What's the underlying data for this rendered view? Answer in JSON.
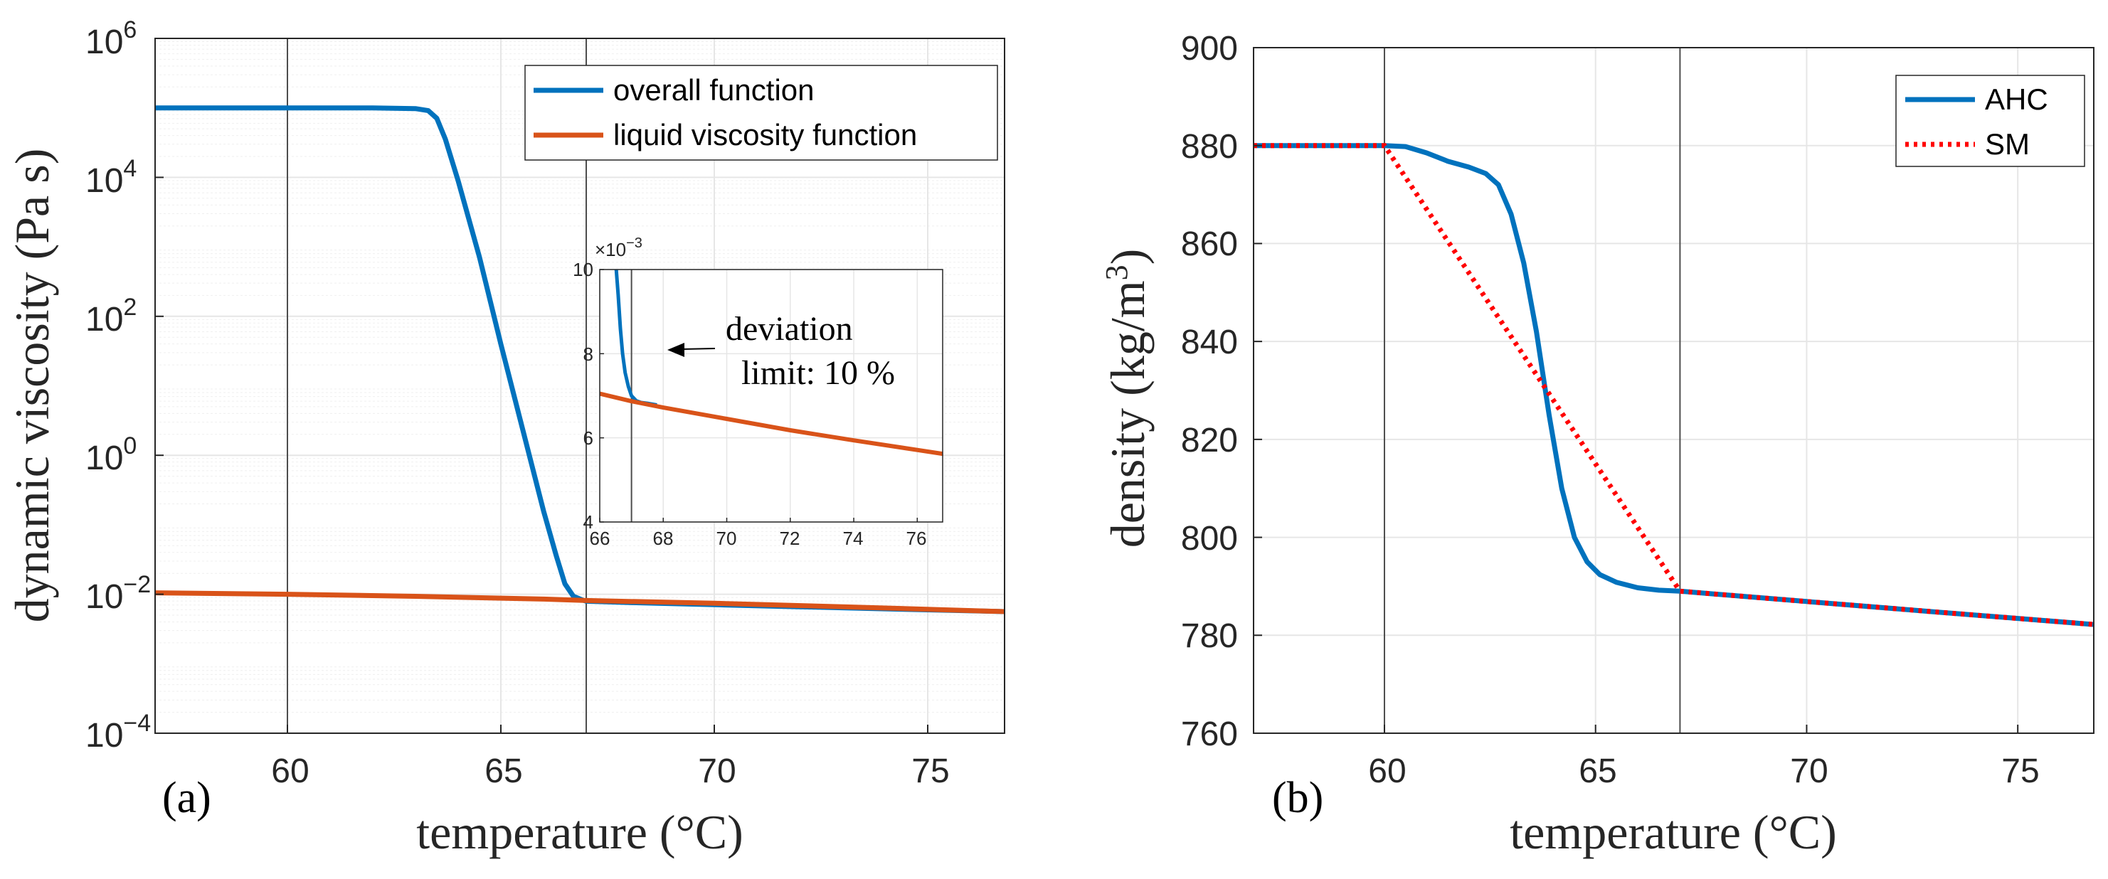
{
  "colors": {
    "blue": "#0072BD",
    "orange": "#D95319",
    "red": "#FF0000",
    "grid": "#E6E6E6",
    "minor_grid": "#EFEFEF",
    "vline": "#4D4D4D",
    "axis": "#262626"
  },
  "chart_data": [
    {
      "type": "line",
      "panel_label": "(a)",
      "xlabel": "temperature (°C)",
      "ylabel": "dynamic viscosity (Pa s)",
      "yscale": "log",
      "xlim": [
        56.9,
        76.8
      ],
      "ylim_log10": [
        -4,
        6
      ],
      "xticks": [
        60,
        65,
        70,
        75
      ],
      "xtick_labels": [
        "60",
        "65",
        "70",
        "75"
      ],
      "yticks_log10": [
        -4,
        -2,
        0,
        2,
        4,
        6
      ],
      "ytick_bases": [
        "10",
        "10",
        "10",
        "10",
        "10",
        "10"
      ],
      "ytick_exponents": [
        "−4",
        "−2",
        "0",
        "2",
        "4",
        "6"
      ],
      "vertical_lines_x": [
        60,
        67
      ],
      "grid": "major and minor",
      "legend_position": "top-right",
      "series": [
        {
          "name": "overall function",
          "color": "#0072BD",
          "x": [
            56.9,
            60,
            62,
            63,
            63.3,
            63.5,
            63.7,
            64,
            64.5,
            65,
            65.5,
            66,
            66.3,
            66.5,
            66.7,
            66.9,
            67,
            68,
            70,
            72,
            74,
            76.8
          ],
          "y_log10": [
            5,
            5,
            5,
            4.99,
            4.96,
            4.85,
            4.55,
            3.95,
            2.85,
            1.6,
            0.4,
            -0.8,
            -1.45,
            -1.85,
            -2.03,
            -2.08,
            -2.1,
            -2.12,
            -2.15,
            -2.18,
            -2.21,
            -2.25
          ]
        },
        {
          "name": "liquid viscosity function",
          "color": "#D95319",
          "x": [
            56.9,
            60,
            63,
            66,
            67,
            70,
            73,
            76.8
          ],
          "y_log10": [
            -1.98,
            -2.0,
            -2.03,
            -2.07,
            -2.09,
            -2.13,
            -2.18,
            -2.25
          ]
        }
      ],
      "inset": {
        "xlim": [
          66,
          76.8
        ],
        "ylim": [
          4,
          10
        ],
        "xticks": [
          66,
          68,
          70,
          72,
          74,
          76
        ],
        "xtick_labels": [
          "66",
          "68",
          "70",
          "72",
          "74",
          "76"
        ],
        "yticks": [
          4,
          6,
          8,
          10
        ],
        "ytick_labels": [
          "4",
          "6",
          "8",
          "10"
        ],
        "scale_label_base": "×10",
        "scale_label_exp": "−3",
        "vertical_line_x": 67,
        "series": [
          {
            "name": "overall function",
            "color": "#0072BD",
            "x": [
              66.52,
              66.58,
              66.65,
              66.72,
              66.8,
              66.9,
              67.0,
              67.15,
              67.3,
              67.5,
              67.8
            ],
            "y": [
              10,
              9.4,
              8.6,
              8.0,
              7.55,
              7.22,
              7.0,
              6.88,
              6.84,
              6.82,
              6.78
            ]
          },
          {
            "name": "liquid viscosity function",
            "color": "#D95319",
            "x": [
              66,
              67,
              68,
              70,
              72,
              74,
              76.8
            ],
            "y": [
              7.05,
              6.87,
              6.72,
              6.45,
              6.18,
              5.94,
              5.62
            ]
          }
        ],
        "annotation_line1": "deviation",
        "annotation_line2": "limit: 10 %"
      }
    },
    {
      "type": "line",
      "panel_label": "(b)",
      "xlabel": "temperature (°C)",
      "ylabel_main": "density (kg/m",
      "ylabel_sup": "3",
      "ylabel_end": ")",
      "xlim": [
        56.9,
        76.8
      ],
      "ylim": [
        760,
        900
      ],
      "xticks": [
        60,
        65,
        70,
        75
      ],
      "xtick_labels": [
        "60",
        "65",
        "70",
        "75"
      ],
      "yticks": [
        760,
        780,
        800,
        820,
        840,
        860,
        880,
        900
      ],
      "ytick_labels": [
        "760",
        "780",
        "800",
        "820",
        "840",
        "860",
        "880",
        "900"
      ],
      "vertical_lines_x": [
        60,
        67
      ],
      "grid": "major",
      "legend_position": "top-right",
      "series": [
        {
          "name": "AHC",
          "color": "#0072BD",
          "style": "solid",
          "x": [
            56.9,
            60,
            60.5,
            61,
            61.5,
            62,
            62.4,
            62.7,
            63,
            63.3,
            63.6,
            63.9,
            64.2,
            64.5,
            64.8,
            65.1,
            65.5,
            66,
            66.5,
            67,
            70,
            73,
            76.8
          ],
          "y": [
            880,
            880,
            879.8,
            878.5,
            876.8,
            875.6,
            874.3,
            872,
            866,
            856,
            842,
            825,
            810,
            800,
            795,
            792.4,
            790.8,
            789.7,
            789.2,
            789,
            786.9,
            784.8,
            782.2
          ]
        },
        {
          "name": "SM",
          "color": "#FF0000",
          "style": "dotted",
          "x": [
            56.9,
            60,
            67,
            70,
            73,
            76.8
          ],
          "y": [
            880,
            880,
            789,
            786.9,
            784.8,
            782.2
          ]
        }
      ]
    }
  ]
}
